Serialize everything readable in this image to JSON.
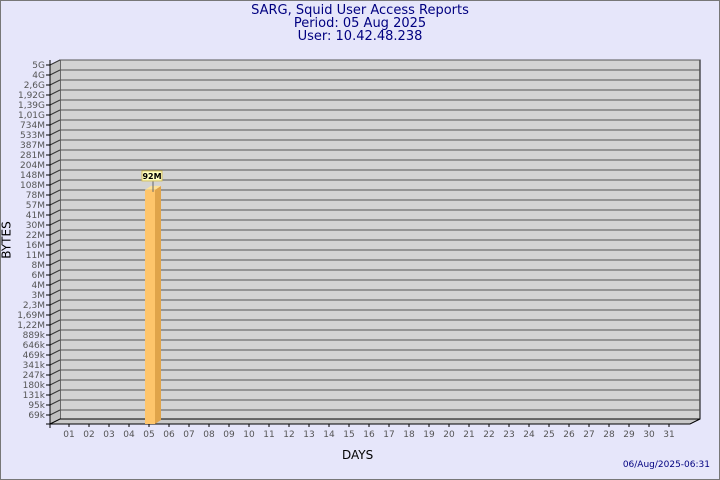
{
  "header": {
    "title": "SARG, Squid User Access Reports",
    "period": "Period: 05 Aug 2025",
    "user": "User: 10.42.48.238"
  },
  "footer": {
    "timestamp": "06/Aug/2025-06:31"
  },
  "colors": {
    "background": "#e6e6fa",
    "plot": "#d3d3d3",
    "bar_front": "#fec56b",
    "bar_side": "#e0a44a",
    "text": "#000080"
  },
  "chart_data": {
    "type": "bar",
    "xlabel": "DAYS",
    "ylabel": "BYTES",
    "y_scale": "log",
    "grid": true,
    "y_ticks": [
      "5G",
      "4G",
      "2,6G",
      "1,92G",
      "1,39G",
      "1,01G",
      "734M",
      "533M",
      "387M",
      "281M",
      "204M",
      "148M",
      "108M",
      "78M",
      "57M",
      "41M",
      "30M",
      "22M",
      "16M",
      "11M",
      "8M",
      "6M",
      "4M",
      "3M",
      "2,3M",
      "1,69M",
      "1,22M",
      "889k",
      "646k",
      "469k",
      "341k",
      "247k",
      "180k",
      "131k",
      "95k",
      "69k"
    ],
    "categories": [
      "01",
      "02",
      "03",
      "04",
      "05",
      "06",
      "07",
      "08",
      "09",
      "10",
      "11",
      "12",
      "13",
      "14",
      "15",
      "16",
      "17",
      "18",
      "19",
      "20",
      "21",
      "22",
      "23",
      "24",
      "25",
      "26",
      "27",
      "28",
      "29",
      "30",
      "31"
    ],
    "values": [
      0,
      0,
      0,
      0,
      92000000,
      0,
      0,
      0,
      0,
      0,
      0,
      0,
      0,
      0,
      0,
      0,
      0,
      0,
      0,
      0,
      0,
      0,
      0,
      0,
      0,
      0,
      0,
      0,
      0,
      0,
      0
    ],
    "data_labels": {
      "05": "92M"
    }
  }
}
